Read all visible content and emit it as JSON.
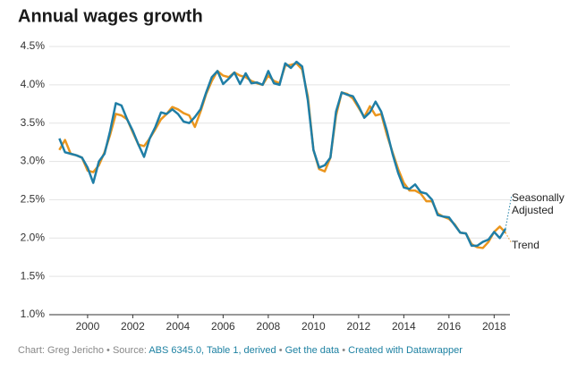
{
  "chart_data": {
    "type": "line",
    "title": "Annual wages growth",
    "x": [
      1998.75,
      1999,
      1999.25,
      1999.5,
      1999.75,
      2000,
      2000.25,
      2000.5,
      2000.75,
      2001,
      2001.25,
      2001.5,
      2001.75,
      2002,
      2002.25,
      2002.5,
      2002.75,
      2003,
      2003.25,
      2003.5,
      2003.75,
      2004,
      2004.25,
      2004.5,
      2004.75,
      2005,
      2005.25,
      2005.5,
      2005.75,
      2006,
      2006.25,
      2006.5,
      2006.75,
      2007,
      2007.25,
      2007.5,
      2007.75,
      2008,
      2008.25,
      2008.5,
      2008.75,
      2009,
      2009.25,
      2009.5,
      2009.75,
      2010,
      2010.25,
      2010.5,
      2010.75,
      2011,
      2011.25,
      2011.5,
      2011.75,
      2012,
      2012.25,
      2012.5,
      2012.75,
      2013,
      2013.25,
      2013.5,
      2013.75,
      2014,
      2014.25,
      2014.5,
      2014.75,
      2015,
      2015.25,
      2015.5,
      2015.75,
      2016,
      2016.25,
      2016.5,
      2016.75,
      2017,
      2017.25,
      2017.5,
      2017.75,
      2018,
      2018.25,
      2018.5
    ],
    "series": [
      {
        "name": "Seasonally Adjusted",
        "color": "#1f7ea6",
        "values": [
          3.3,
          3.12,
          3.1,
          3.08,
          3.05,
          2.92,
          2.72,
          3.0,
          3.1,
          3.4,
          3.76,
          3.73,
          3.55,
          3.4,
          3.22,
          3.06,
          3.3,
          3.45,
          3.64,
          3.62,
          3.68,
          3.62,
          3.52,
          3.5,
          3.58,
          3.68,
          3.9,
          4.1,
          4.18,
          4.01,
          4.08,
          4.16,
          4.01,
          4.15,
          4.02,
          4.03,
          4.0,
          4.18,
          4.02,
          4.0,
          4.28,
          4.22,
          4.3,
          4.24,
          3.8,
          3.15,
          2.92,
          2.95,
          3.05,
          3.65,
          3.9,
          3.87,
          3.85,
          3.72,
          3.57,
          3.64,
          3.78,
          3.65,
          3.4,
          3.1,
          2.85,
          2.66,
          2.64,
          2.7,
          2.6,
          2.58,
          2.5,
          2.3,
          2.28,
          2.27,
          2.17,
          2.07,
          2.06,
          1.9,
          1.9,
          1.95,
          1.98,
          2.08,
          2.0,
          2.12
        ]
      },
      {
        "name": "Trend",
        "color": "#eb961e",
        "values": [
          3.15,
          3.28,
          3.1,
          3.08,
          3.05,
          2.88,
          2.86,
          2.95,
          3.12,
          3.35,
          3.62,
          3.6,
          3.55,
          3.38,
          3.22,
          3.2,
          3.3,
          3.42,
          3.55,
          3.62,
          3.71,
          3.68,
          3.63,
          3.6,
          3.45,
          3.65,
          3.88,
          4.05,
          4.18,
          4.12,
          4.1,
          4.16,
          4.12,
          4.1,
          4.05,
          4.02,
          4.0,
          4.12,
          4.05,
          4.02,
          4.25,
          4.26,
          4.28,
          4.2,
          3.85,
          3.15,
          2.9,
          2.87,
          3.05,
          3.6,
          3.9,
          3.88,
          3.82,
          3.7,
          3.58,
          3.72,
          3.6,
          3.62,
          3.35,
          3.12,
          2.9,
          2.72,
          2.62,
          2.62,
          2.58,
          2.48,
          2.48,
          2.32,
          2.28,
          2.25,
          2.18,
          2.07,
          2.06,
          1.92,
          1.88,
          1.87,
          1.95,
          2.08,
          2.15,
          2.07
        ]
      }
    ],
    "xlim": [
      1998.3,
      2018.7
    ],
    "xticks": [
      2000,
      2002,
      2004,
      2006,
      2008,
      2010,
      2012,
      2014,
      2016,
      2018
    ],
    "ylim": [
      1.0,
      4.5
    ],
    "yticks": [
      {
        "value": 1.0,
        "label": "1.0%"
      },
      {
        "value": 1.5,
        "label": "1.5%"
      },
      {
        "value": 2.0,
        "label": "2.0%"
      },
      {
        "value": 2.5,
        "label": "2.5%"
      },
      {
        "value": 3.0,
        "label": "3.0%"
      },
      {
        "value": 3.5,
        "label": "3.5%"
      },
      {
        "value": 4.0,
        "label": "4.0%"
      },
      {
        "value": 4.5,
        "label": "4.5%"
      }
    ],
    "grid": true
  },
  "footer": {
    "credit": "Chart: Greg Jericho",
    "separator": "•",
    "source_label": "Source:",
    "source": "ABS 6345.0, Table 1, derived",
    "get_data": "Get the data",
    "made_with": "Created with Datawrapper"
  }
}
